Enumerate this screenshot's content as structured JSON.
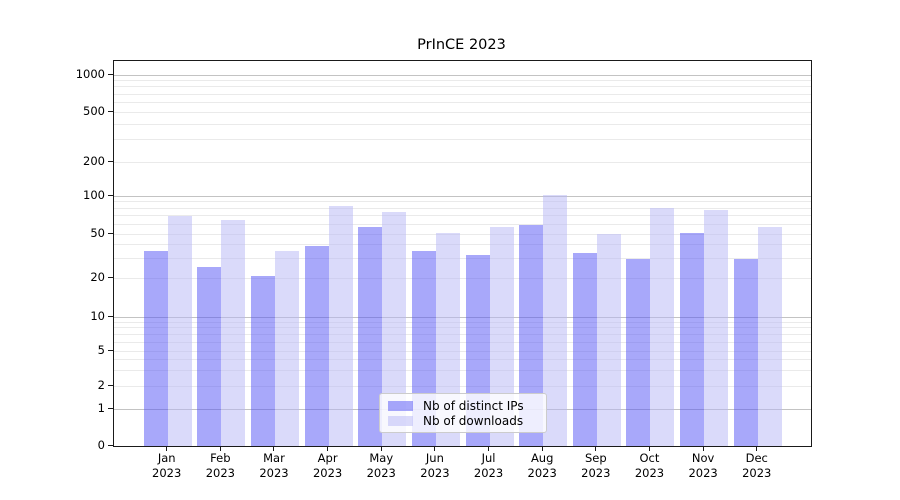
{
  "chart_data": {
    "type": "bar",
    "title": "PrInCE 2023",
    "categories": [
      "Jan 2023",
      "Feb 2023",
      "Mar 2023",
      "Apr 2023",
      "May 2023",
      "Jun 2023",
      "Jul 2023",
      "Aug 2023",
      "Sep 2023",
      "Oct 2023",
      "Nov 2023",
      "Dec 2023"
    ],
    "series": [
      {
        "name": "Nb of distinct IPs",
        "color": "rgba(82,82,245,0.5)",
        "solid_color": "#a8a8f6",
        "values": [
          35,
          25,
          21,
          39,
          57,
          35,
          32,
          59,
          34,
          30,
          51,
          30
        ]
      },
      {
        "name": "Nb of downloads",
        "color": "rgba(181,181,245,0.5)",
        "solid_color": "#dadafa",
        "values": [
          70,
          65,
          35,
          83,
          75,
          51,
          57,
          103,
          50,
          80,
          78,
          57
        ]
      }
    ],
    "xlabel": "",
    "ylabel": "",
    "y_scale": "symlog",
    "y_ticks": [
      1000,
      500,
      200,
      100,
      50,
      20,
      10,
      5,
      2,
      1,
      0
    ],
    "ylim": [
      0,
      1300
    ],
    "grid": true,
    "grid_major_color": "#c3c3c3",
    "grid_minor_color": "#eaeaea",
    "legend_position": "lower-center"
  }
}
